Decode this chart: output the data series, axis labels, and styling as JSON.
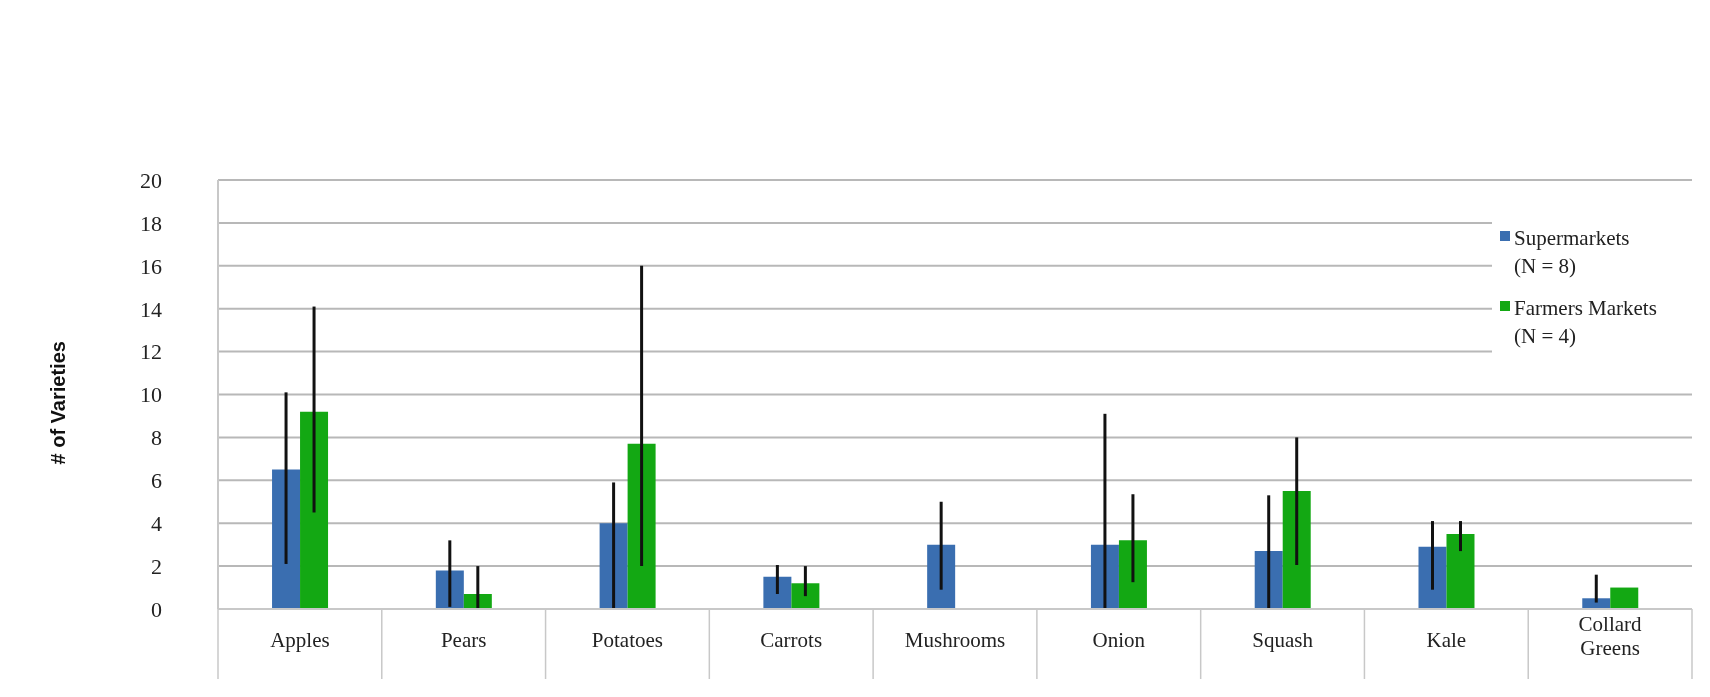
{
  "chart_data": {
    "type": "bar",
    "ylabel": "# of Varieties",
    "categories": [
      "Apples",
      "Pears",
      "Potatoes",
      "Carrots",
      "Mushrooms",
      "Onion",
      "Squash",
      "Kale",
      "Collard Greens"
    ],
    "series": [
      {
        "name": "Supermarkets (N = 8)",
        "color": "#3a6eb0",
        "values": [
          6.5,
          1.8,
          4,
          1.5,
          3,
          3,
          2.7,
          2.9,
          0.5
        ],
        "errors": [
          [
            2.1,
            10.1
          ],
          [
            0.1,
            3.2
          ],
          [
            0,
            5.9
          ],
          [
            0.7,
            2.05
          ],
          [
            0.9,
            5
          ],
          [
            0,
            9.1
          ],
          [
            0,
            5.3
          ],
          [
            0.9,
            4.1
          ],
          [
            0.3,
            1.6
          ]
        ]
      },
      {
        "name": "Farmers Markets (N = 4)",
        "color": "#13a813",
        "values": [
          9.2,
          0.7,
          7.7,
          1.2,
          null,
          3.2,
          5.5,
          3.5,
          1
        ],
        "errors": [
          [
            4.5,
            14.1
          ],
          [
            0,
            2
          ],
          [
            2,
            16
          ],
          [
            0.6,
            2
          ],
          null,
          [
            1.25,
            5.35
          ],
          [
            2.05,
            8
          ],
          [
            2.7,
            4.1
          ],
          null
        ]
      }
    ],
    "ylim": [
      0,
      20
    ],
    "yticks": [
      0,
      2,
      4,
      6,
      8,
      10,
      12,
      14,
      16,
      18,
      20
    ],
    "grid": "y",
    "legend": "right"
  }
}
